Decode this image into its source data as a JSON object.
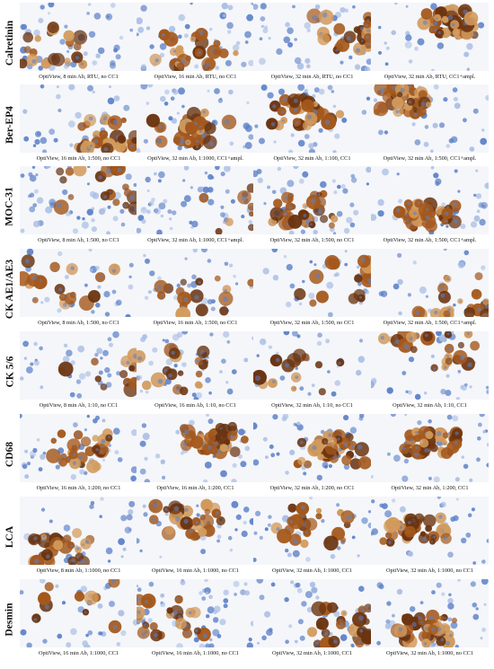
{
  "rows": [
    {
      "marker": "Calretinin",
      "panels": [
        {
          "caption": "OptiView, 8 min Ab, RTU, no CC1",
          "stain_density": 0.35,
          "counterstain_density": 0.6
        },
        {
          "caption": "OptiView, 16 min Ab, RTU, no CC1",
          "stain_density": 0.55,
          "counterstain_density": 0.55
        },
        {
          "caption": "OptiView, 32 min Ab, RTU, no CC1",
          "stain_density": 0.5,
          "counterstain_density": 0.55
        },
        {
          "caption": "OptiView, 32 min Ab, RTU, CC1+ampl.",
          "stain_density": 0.85,
          "counterstain_density": 0.4
        }
      ]
    },
    {
      "marker": "Ber-EP4",
      "panels": [
        {
          "caption": "OptiView, 16 min Ab, 1:500, no CC1",
          "stain_density": 0.65,
          "counterstain_density": 0.4
        },
        {
          "caption": "OptiView, 32 min Ab, 1:1000, CC1+ampl.",
          "stain_density": 0.6,
          "counterstain_density": 0.5
        },
        {
          "caption": "OptiView, 32 min Ab, 1:100, CC1",
          "stain_density": 0.75,
          "counterstain_density": 0.4
        },
        {
          "caption": "OptiView, 32 min Ab, 1:500, CC1+ampl.",
          "stain_density": 0.8,
          "counterstain_density": 0.4
        }
      ]
    },
    {
      "marker": "MOC-31",
      "panels": [
        {
          "caption": "OptiView, 8 min Ab, 1:500, no CC1",
          "stain_density": 0.35,
          "counterstain_density": 0.65
        },
        {
          "caption": "OptiView, 32 min Ab, 1:1000, CC1+ampl.",
          "stain_density": 0.1,
          "counterstain_density": 0.8
        },
        {
          "caption": "OptiView, 32 min Ab, 1:500, no CC1",
          "stain_density": 0.6,
          "counterstain_density": 0.5
        },
        {
          "caption": "OptiView, 32 min Ab, 1:500, CC1+ampl.",
          "stain_density": 0.85,
          "counterstain_density": 0.4
        }
      ]
    },
    {
      "marker": "CK AE1/AE3",
      "panels": [
        {
          "caption": "OptiView, 8 min Ab, 1:500, no CC1",
          "stain_density": 0.3,
          "counterstain_density": 0.3
        },
        {
          "caption": "OptiView, 16 min Ab, 1:500, no CC1",
          "stain_density": 0.3,
          "counterstain_density": 0.3
        },
        {
          "caption": "OptiView, 32 min Ab, 1:500, no CC1",
          "stain_density": 0.3,
          "counterstain_density": 0.3
        },
        {
          "caption": "OptiView, 32 min Ab, 1:500, CC1+ampl.",
          "stain_density": 0.4,
          "counterstain_density": 0.2
        }
      ]
    },
    {
      "marker": "CK 5/6",
      "panels": [
        {
          "caption": "OptiView, 8 min Ab, 1:10, no CC1",
          "stain_density": 0.25,
          "counterstain_density": 0.45
        },
        {
          "caption": "OptiView, 16 min Ab, 1:10, no CC1",
          "stain_density": 0.35,
          "counterstain_density": 0.6
        },
        {
          "caption": "OptiView, 32 min Ab, 1:10, no CC1",
          "stain_density": 0.25,
          "counterstain_density": 0.3
        },
        {
          "caption": "OptiView, 32 min Ab, 1:10, CC1",
          "stain_density": 0.45,
          "counterstain_density": 0.45
        }
      ]
    },
    {
      "marker": "CD68",
      "panels": [
        {
          "caption": "OptiView, 16 min Ab, 1:200, no CC1",
          "stain_density": 0.6,
          "counterstain_density": 0.45
        },
        {
          "caption": "OptiView, 16 min Ab, 1:200, CC1",
          "stain_density": 0.8,
          "counterstain_density": 0.4
        },
        {
          "caption": "OptiView, 32 min Ab, 1:200, no CC1",
          "stain_density": 0.7,
          "counterstain_density": 0.5
        },
        {
          "caption": "OptiView, 32 min Ab, 1:200, CC1",
          "stain_density": 0.9,
          "counterstain_density": 0.35
        }
      ]
    },
    {
      "marker": "LCA",
      "panels": [
        {
          "caption": "OptiView, 8 min Ab, 1:1000, no CC1",
          "stain_density": 0.55,
          "counterstain_density": 0.35
        },
        {
          "caption": "OptiView, 16 min Ab, 1:1000, no CC1",
          "stain_density": 0.6,
          "counterstain_density": 0.35
        },
        {
          "caption": "OptiView, 32 min Ab, 1:1000, CC1",
          "stain_density": 0.45,
          "counterstain_density": 0.35
        },
        {
          "caption": "OptiView, 32 min Ab, 1:1000, no CC1",
          "stain_density": 0.75,
          "counterstain_density": 0.3
        }
      ]
    },
    {
      "marker": "Desmin",
      "panels": [
        {
          "caption": "OptiView, 16 min Ab, 1:1000, CC1",
          "stain_density": 0.15,
          "counterstain_density": 0.35
        },
        {
          "caption": "OptiView, 16 min Ab, 1:1000, no CC1",
          "stain_density": 0.45,
          "counterstain_density": 0.75
        },
        {
          "caption": "OptiView, 32 min Ab, 1:1000, CC1",
          "stain_density": 0.5,
          "counterstain_density": 0.6
        },
        {
          "caption": "OptiView, 32 min Ab, 1:1000, no CC1",
          "stain_density": 0.75,
          "counterstain_density": 0.45
        }
      ]
    }
  ],
  "colors": {
    "dab_dark": "#6b3410",
    "dab_mid": "#a4581c",
    "dab_light": "#d29a5c",
    "hematoxylin": "#5b7fc7",
    "hematoxylin_light": "#a9bde3",
    "background": "#f4f6fa"
  }
}
